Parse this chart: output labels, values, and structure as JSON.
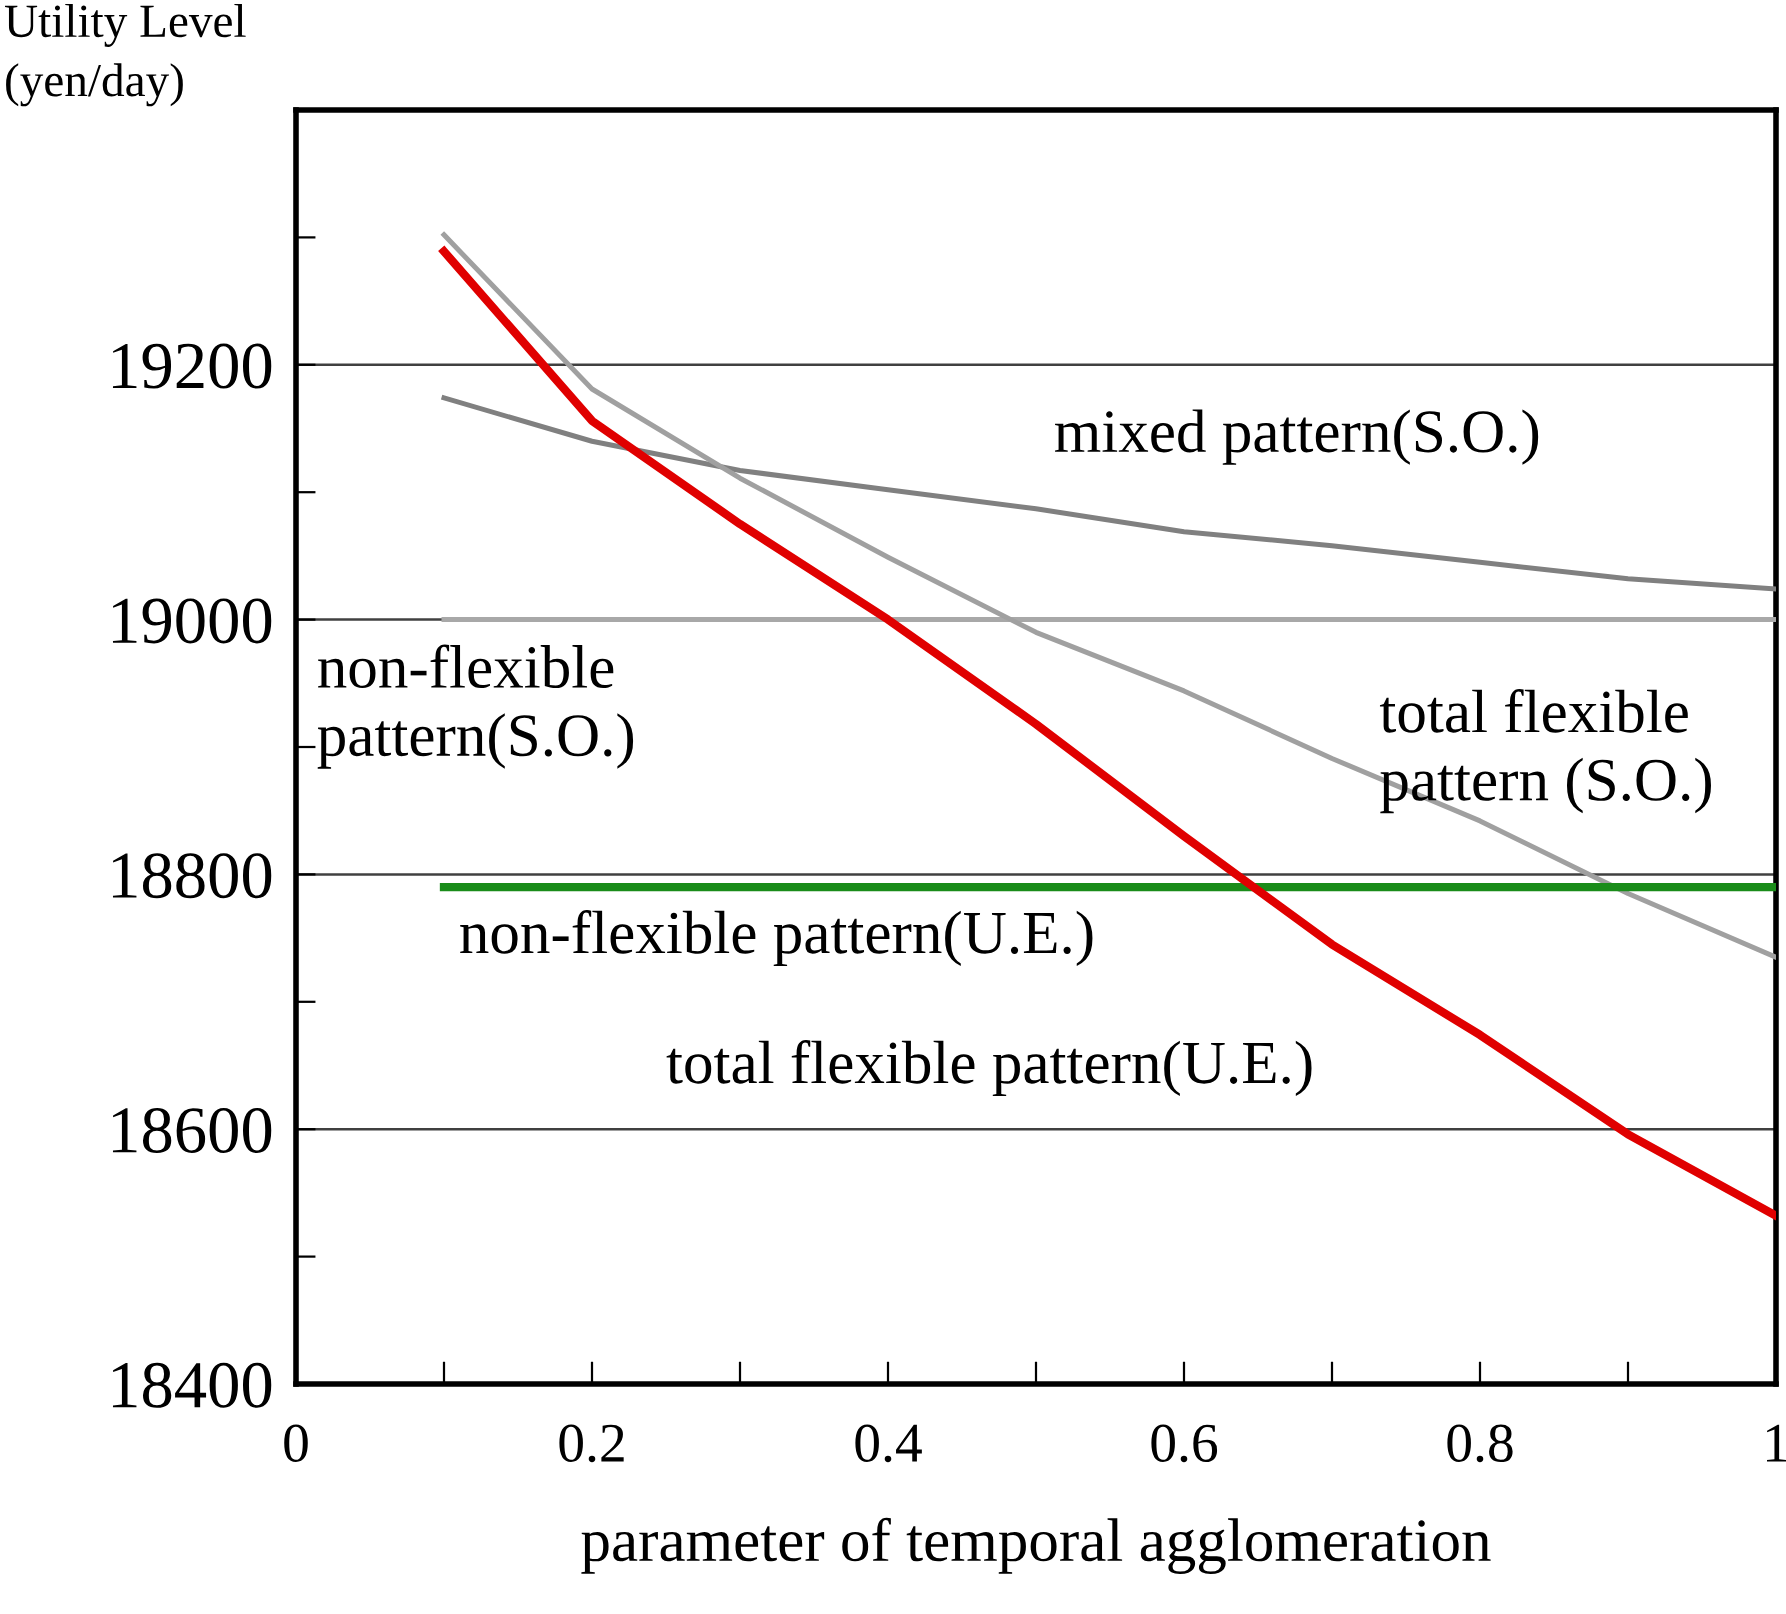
{
  "chart_data": {
    "type": "line",
    "xlabel": "parameter of temporal agglomeration",
    "ylabel": "Utility Level\n(yen/day)",
    "x": [
      0.1,
      0.2,
      0.3,
      0.4,
      0.5,
      0.6,
      0.7,
      0.8,
      0.9,
      1.0
    ],
    "series": [
      {
        "name": "mixed pattern(S.O.)",
        "color": "#808080",
        "values": [
          19174,
          19140,
          19117,
          19102,
          19087,
          19069,
          19058,
          19045,
          19032,
          19024
        ]
      },
      {
        "name": "non-flexible\npattern(S.O.)",
        "color": "#a8a8a8",
        "values": [
          19000,
          19000,
          19000,
          19000,
          19000,
          19000,
          19000,
          19000,
          19000,
          19000
        ]
      },
      {
        "name": "total flexible\npattern (S.O.)",
        "color": "#a0a0a0",
        "values": [
          19302,
          19181,
          19111,
          19049,
          18990,
          18944,
          18891,
          18842,
          18785,
          18735
        ]
      },
      {
        "name": "non-flexible pattern(U.E.)",
        "color": "#1a8c1a",
        "values": [
          18790,
          18790,
          18790,
          18790,
          18790,
          18790,
          18790,
          18790,
          18790,
          18790
        ]
      },
      {
        "name": "total flexible pattern(U.E.)",
        "color": "#e00000",
        "values": [
          19289,
          19156,
          19075,
          19000,
          18918,
          18830,
          18745,
          18674,
          18596,
          18532
        ]
      }
    ],
    "xlim": [
      0,
      1
    ],
    "xticks": [
      0,
      {
        "value": 0.1,
        "label": null
      },
      0.2,
      {
        "value": 0.3,
        "label": null
      },
      0.4,
      {
        "value": 0.5,
        "label": null
      },
      0.6,
      {
        "value": 0.7,
        "label": null
      },
      0.8,
      {
        "value": 0.9,
        "label": null
      },
      1
    ],
    "ylim": [
      18400,
      19400
    ],
    "yticks": [
      18400,
      {
        "value": 18500,
        "label": null
      },
      18600,
      {
        "value": 18700,
        "label": null
      },
      18800,
      {
        "value": 18900,
        "label": null
      },
      19000,
      {
        "value": 19100,
        "label": null
      },
      19200,
      {
        "value": 19300,
        "label": null
      }
    ],
    "grid": "y",
    "legend": false,
    "marker": "none",
    "line_style": "solid"
  }
}
